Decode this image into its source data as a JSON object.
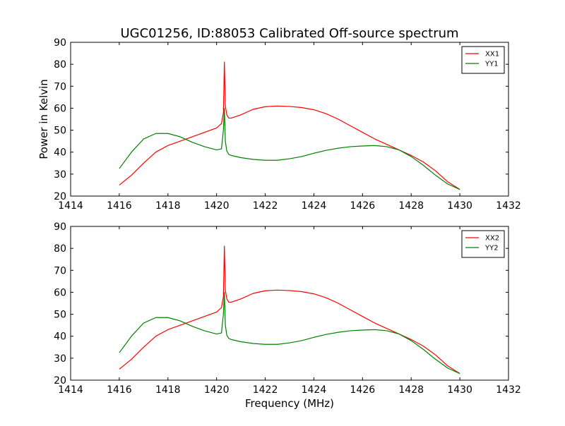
{
  "figure": {
    "title": "UGC01256, ID:88053 Calibrated Off-source spectrum",
    "xlabel": "Frequency (MHz)",
    "ylabel": "Power in Kelvin"
  },
  "chart_data": [
    {
      "type": "line",
      "title": "UGC01256, ID:88053 Calibrated Off-source spectrum",
      "xlabel": "",
      "ylabel": "Power in Kelvin",
      "xlim": [
        1414,
        1432
      ],
      "ylim": [
        20,
        90
      ],
      "xticks": [
        "1414",
        "1416",
        "1418",
        "1420",
        "1422",
        "1424",
        "1426",
        "1428",
        "1430",
        "1432"
      ],
      "yticks": [
        "20",
        "30",
        "40",
        "50",
        "60",
        "70",
        "80",
        "90"
      ],
      "grid": false,
      "legend": "top-right",
      "series": [
        {
          "name": "XX1",
          "color": "#ff0000",
          "x": [
            1416.0,
            1416.5,
            1417.0,
            1417.5,
            1418.0,
            1418.5,
            1419.0,
            1419.5,
            1420.0,
            1420.2,
            1420.28,
            1420.32,
            1420.36,
            1420.42,
            1420.5,
            1420.6,
            1421.0,
            1421.5,
            1422.0,
            1422.5,
            1423.0,
            1423.5,
            1424.0,
            1424.5,
            1425.0,
            1425.5,
            1426.0,
            1426.5,
            1427.0,
            1427.5,
            1428.0,
            1428.5,
            1429.0,
            1429.5,
            1430.0
          ],
          "y": [
            25.0,
            29.5,
            35.0,
            40.0,
            43.0,
            45.0,
            47.0,
            49.0,
            51.0,
            53.0,
            58.0,
            81.0,
            61.0,
            57.0,
            55.5,
            55.5,
            57.0,
            59.5,
            60.7,
            61.0,
            60.8,
            60.3,
            59.3,
            57.5,
            55.0,
            52.0,
            49.0,
            46.0,
            43.5,
            41.0,
            38.5,
            35.5,
            31.5,
            26.5,
            23.0
          ]
        },
        {
          "name": "YY1",
          "color": "#008000",
          "x": [
            1416.0,
            1416.5,
            1417.0,
            1417.5,
            1418.0,
            1418.5,
            1419.0,
            1419.5,
            1420.0,
            1420.2,
            1420.28,
            1420.32,
            1420.36,
            1420.42,
            1420.5,
            1420.6,
            1421.0,
            1421.5,
            1422.0,
            1422.5,
            1423.0,
            1423.5,
            1424.0,
            1424.5,
            1425.0,
            1425.5,
            1426.0,
            1426.5,
            1427.0,
            1427.5,
            1428.0,
            1428.5,
            1429.0,
            1429.5,
            1430.0
          ],
          "y": [
            32.5,
            40.0,
            46.0,
            48.5,
            48.5,
            47.0,
            44.5,
            42.5,
            41.0,
            41.5,
            50.0,
            60.0,
            45.0,
            40.5,
            39.0,
            38.5,
            37.5,
            36.7,
            36.3,
            36.3,
            37.0,
            38.0,
            39.5,
            40.8,
            41.8,
            42.5,
            42.8,
            43.0,
            42.5,
            41.0,
            38.0,
            34.0,
            29.5,
            25.5,
            23.0
          ]
        }
      ]
    },
    {
      "type": "line",
      "title": "",
      "xlabel": "Frequency (MHz)",
      "ylabel": "",
      "xlim": [
        1414,
        1432
      ],
      "ylim": [
        20,
        90
      ],
      "xticks": [
        "1414",
        "1416",
        "1418",
        "1420",
        "1422",
        "1424",
        "1426",
        "1428",
        "1430",
        "1432"
      ],
      "yticks": [
        "20",
        "30",
        "40",
        "50",
        "60",
        "70",
        "80",
        "90"
      ],
      "grid": false,
      "legend": "top-right",
      "series": [
        {
          "name": "XX2",
          "color": "#ff0000",
          "x": [
            1416.0,
            1416.5,
            1417.0,
            1417.5,
            1418.0,
            1418.5,
            1419.0,
            1419.5,
            1420.0,
            1420.2,
            1420.28,
            1420.32,
            1420.36,
            1420.42,
            1420.5,
            1420.6,
            1421.0,
            1421.5,
            1422.0,
            1422.5,
            1423.0,
            1423.5,
            1424.0,
            1424.5,
            1425.0,
            1425.5,
            1426.0,
            1426.5,
            1427.0,
            1427.5,
            1428.0,
            1428.5,
            1429.0,
            1429.5,
            1430.0
          ],
          "y": [
            25.0,
            29.5,
            35.0,
            40.0,
            43.0,
            45.0,
            47.0,
            49.0,
            51.0,
            53.0,
            58.0,
            81.0,
            61.0,
            57.0,
            55.5,
            55.5,
            57.0,
            59.5,
            60.7,
            61.0,
            60.8,
            60.3,
            59.3,
            57.5,
            55.0,
            52.0,
            49.0,
            46.0,
            43.5,
            41.0,
            38.5,
            35.5,
            31.5,
            26.5,
            23.0
          ]
        },
        {
          "name": "YY2",
          "color": "#008000",
          "x": [
            1416.0,
            1416.5,
            1417.0,
            1417.5,
            1418.0,
            1418.5,
            1419.0,
            1419.5,
            1420.0,
            1420.2,
            1420.28,
            1420.32,
            1420.36,
            1420.42,
            1420.5,
            1420.6,
            1421.0,
            1421.5,
            1422.0,
            1422.5,
            1423.0,
            1423.5,
            1424.0,
            1424.5,
            1425.0,
            1425.5,
            1426.0,
            1426.5,
            1427.0,
            1427.5,
            1428.0,
            1428.5,
            1429.0,
            1429.5,
            1430.0
          ],
          "y": [
            32.5,
            40.0,
            46.0,
            48.5,
            48.5,
            47.0,
            44.5,
            42.5,
            41.0,
            41.5,
            50.0,
            60.0,
            45.0,
            40.5,
            39.0,
            38.5,
            37.5,
            36.7,
            36.3,
            36.3,
            37.0,
            38.0,
            39.5,
            40.8,
            41.8,
            42.5,
            42.8,
            43.0,
            42.5,
            41.0,
            38.0,
            34.0,
            29.5,
            25.5,
            23.0
          ]
        }
      ]
    }
  ]
}
